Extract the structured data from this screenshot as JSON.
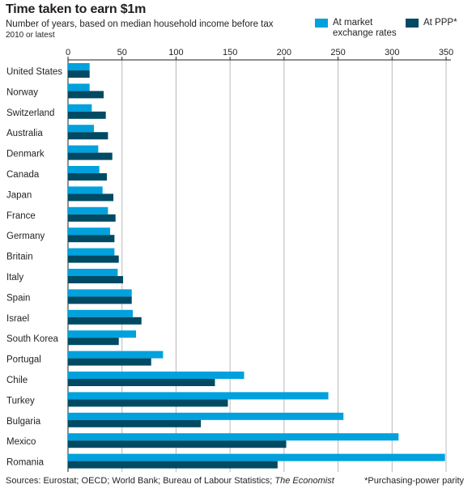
{
  "title": "Time taken to earn $1m",
  "subtitle": "Number of years, based on median household income before tax",
  "note": "2010 or latest",
  "legend": [
    {
      "label_line1": "At market",
      "label_line2": "exchange rates",
      "color": "#00a1dc"
    },
    {
      "label_line1": "At PPP*",
      "label_line2": "",
      "color": "#004a63"
    }
  ],
  "footer": {
    "sources_prefix": "Sources: Eurostat; OECD; World Bank; Bureau of Labour Statistics; ",
    "sources_italic": "The Economist",
    "footnote": "*Purchasing-power parity"
  },
  "colors": {
    "market": "#00a1dc",
    "ppp": "#004a63",
    "grid": "#b8b8b8",
    "axis": "#231f20"
  },
  "chart_data": {
    "type": "bar",
    "orientation": "horizontal",
    "xlim": [
      0,
      350
    ],
    "ticks": [
      0,
      50,
      100,
      150,
      200,
      250,
      300,
      350
    ],
    "grid": true,
    "legend_position": "top-right",
    "categories": [
      "United States",
      "Norway",
      "Switzerland",
      "Australia",
      "Denmark",
      "Canada",
      "Japan",
      "France",
      "Germany",
      "Britain",
      "Italy",
      "Spain",
      "Israel",
      "South Korea",
      "Portugal",
      "Chile",
      "Turkey",
      "Bulgaria",
      "Mexico",
      "Romania"
    ],
    "series": [
      {
        "name": "At market exchange rates",
        "values": [
          20,
          20,
          22,
          24,
          28,
          29,
          32,
          37,
          39,
          43,
          46,
          59,
          60,
          63,
          88,
          163,
          241,
          255,
          306,
          349
        ]
      },
      {
        "name": "At PPP*",
        "values": [
          20,
          33,
          35,
          37,
          41,
          36,
          42,
          44,
          43,
          47,
          51,
          59,
          68,
          47,
          77,
          136,
          148,
          123,
          202,
          194
        ]
      }
    ]
  }
}
